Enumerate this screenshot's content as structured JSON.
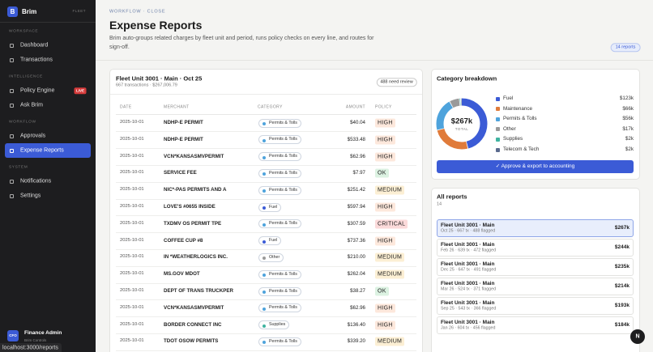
{
  "sidebar": {
    "logo": "B",
    "brand": "Brim",
    "badge": "FLEET",
    "sections": [
      {
        "title": "WORKSPACE",
        "items": [
          {
            "label": "Dashboard"
          },
          {
            "label": "Transactions"
          }
        ]
      },
      {
        "title": "INTELLIGENCE",
        "items": [
          {
            "label": "Policy Engine",
            "tag": "LIVE"
          },
          {
            "label": "Ask Brim"
          }
        ]
      },
      {
        "title": "WORKFLOW",
        "items": [
          {
            "label": "Approvals"
          },
          {
            "label": "Expense Reports",
            "active": true
          }
        ]
      },
      {
        "title": "SYSTEM",
        "items": [
          {
            "label": "Notifications"
          },
          {
            "label": "Settings"
          }
        ]
      }
    ],
    "user": {
      "avatar": "CFO",
      "name": "Finance Admin",
      "role": "Brim Controls"
    }
  },
  "status_url": "localhost:3000/reports",
  "header": {
    "breadcrumb": "WORKFLOW · CLOSE",
    "title": "Expense Reports",
    "description": "Brim auto-groups related charges by fleet unit and period, runs policy checks on every line, and routes for sign-off.",
    "count": "14 reports"
  },
  "report": {
    "title": "Fleet Unit 3001 · Main · Oct 25",
    "subtitle": "667 transactions · $267,006.79",
    "review": "488 need review",
    "columns": [
      "DATE",
      "MERCHANT",
      "CATEGORY",
      "AMOUNT",
      "POLICY"
    ],
    "rows": [
      [
        "2025-10-01",
        "NDHP-E PERMIT",
        "Permits & Tolls",
        "$40.04",
        "HIGH"
      ],
      [
        "2025-10-01",
        "NDHP-E PERMIT",
        "Permits & Tolls",
        "$533.48",
        "HIGH"
      ],
      [
        "2025-10-01",
        "VCN*KANSASMVPERMIT",
        "Permits & Tolls",
        "$62.96",
        "HIGH"
      ],
      [
        "2025-10-01",
        "SERVICE FEE",
        "Permits & Tolls",
        "$7.97",
        "OK"
      ],
      [
        "2025-10-01",
        "NIC*-PAS PERMITS AND A",
        "Permits & Tolls",
        "$251.42",
        "MEDIUM"
      ],
      [
        "2025-10-01",
        "LOVE'S #0655 INSIDE",
        "Fuel",
        "$597.94",
        "HIGH"
      ],
      [
        "2025-10-01",
        "TXDMV OS PERMIT TPE",
        "Permits & Tolls",
        "$307.59",
        "CRITICAL"
      ],
      [
        "2025-10-01",
        "COFFEE CUP #8",
        "Fuel",
        "$737.36",
        "HIGH"
      ],
      [
        "2025-10-01",
        "IN *WEATHERLOGICS INC.",
        "Other",
        "$210.00",
        "MEDIUM"
      ],
      [
        "2025-10-01",
        "MS.GOV MDOT",
        "Permits & Tolls",
        "$262.04",
        "MEDIUM"
      ],
      [
        "2025-10-01",
        "DEPT OF TRANS TRUCKPER",
        "Permits & Tolls",
        "$38.27",
        "OK"
      ],
      [
        "2025-10-01",
        "VCN*KANSASMVPERMIT",
        "Permits & Tolls",
        "$62.96",
        "HIGH"
      ],
      [
        "2025-10-01",
        "BORDER CONNECT INC",
        "Supplies",
        "$136.40",
        "HIGH"
      ],
      [
        "2025-10-01",
        "TDOT OSOW PERMITS",
        "Permits & Tolls",
        "$339.20",
        "MEDIUM"
      ]
    ]
  },
  "breakdown": {
    "title": "Category breakdown",
    "total": "$267k",
    "total_label": "TOTAL",
    "categories": [
      {
        "name": "Fuel",
        "color": "#3b5bd6",
        "amount": {
          "value": 123,
          "label": "$123k"
        }
      },
      {
        "name": "Maintenance",
        "color": "#e07b3a",
        "amount": {
          "value": 66,
          "label": "$66k"
        }
      },
      {
        "name": "Permits & Tolls",
        "color": "#4ea3dc",
        "amount": {
          "value": 56,
          "label": "$56k"
        }
      },
      {
        "name": "Other",
        "color": "#9a9a9a",
        "amount": {
          "value": 17,
          "label": "$17k"
        }
      },
      {
        "name": "Supplies",
        "color": "#3fb3a0",
        "amount": {
          "value": 2,
          "label": "$2k"
        }
      },
      {
        "name": "Telecom & Tech",
        "color": "#5b6b8e",
        "amount": {
          "value": 2,
          "label": "$2k"
        }
      }
    ],
    "action": "✓ Approve & export to accounting"
  },
  "all_reports": {
    "title": "All reports",
    "count": "14",
    "items": [
      {
        "name": "Fleet Unit 3001 · Main",
        "meta": "Oct 25 · 667 tx · 488 flagged",
        "amount": "$267k",
        "selected": true
      },
      {
        "name": "Fleet Unit 3001 · Main",
        "meta": "Feb 26 · 639 tx · 472 flagged",
        "amount": "$244k"
      },
      {
        "name": "Fleet Unit 3001 · Main",
        "meta": "Dec 25 · 647 tx · 491 flagged",
        "amount": "$235k"
      },
      {
        "name": "Fleet Unit 3001 · Main",
        "meta": "Mar 26 · 524 tx · 371 flagged",
        "amount": "$214k"
      },
      {
        "name": "Fleet Unit 3001 · Main",
        "meta": "Sep 25 · 543 tx · 366 flagged",
        "amount": "$193k"
      },
      {
        "name": "Fleet Unit 3001 · Main",
        "meta": "Jan 26 · 604 tx · 456 flagged",
        "amount": "$184k"
      }
    ]
  },
  "fab": "N"
}
